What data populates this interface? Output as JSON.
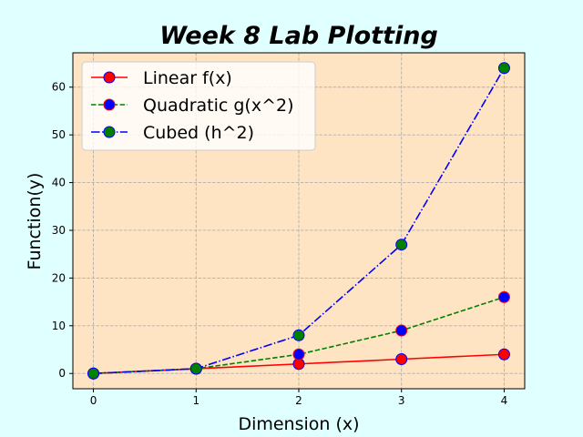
{
  "chart_data": {
    "type": "line",
    "title": "Week 8 Lab Plotting",
    "xlabel": "Dimension (x)",
    "ylabel": "Function(y)",
    "x": [
      0,
      1,
      2,
      3,
      4
    ],
    "xticks": [
      0,
      1,
      2,
      3,
      4
    ],
    "yticks": [
      0,
      10,
      20,
      30,
      40,
      50,
      60
    ],
    "xlim": [
      -0.2,
      4.2
    ],
    "ylim": [
      -3.2,
      67.2
    ],
    "grid": true,
    "legend_position": "upper-left",
    "background_color": "#ffe4c4",
    "figure_color": "#e0ffff",
    "series": [
      {
        "name": "Linear f(x)",
        "values": [
          0,
          1,
          2,
          3,
          4
        ],
        "line_color": "#ff0000",
        "line_style": "solid",
        "marker_face": "#ff0000",
        "marker_edge": "#0000ff"
      },
      {
        "name": "Quadratic g(x^2)",
        "values": [
          0,
          1,
          4,
          9,
          16
        ],
        "line_color": "#008000",
        "line_style": "dashed",
        "marker_face": "#0000ff",
        "marker_edge": "#ff0000"
      },
      {
        "name": "Cubed (h^2)",
        "values": [
          0,
          1,
          8,
          27,
          64
        ],
        "line_color": "#0000ff",
        "line_style": "dashdot",
        "marker_face": "#008000",
        "marker_edge": "#0000ff"
      }
    ]
  }
}
